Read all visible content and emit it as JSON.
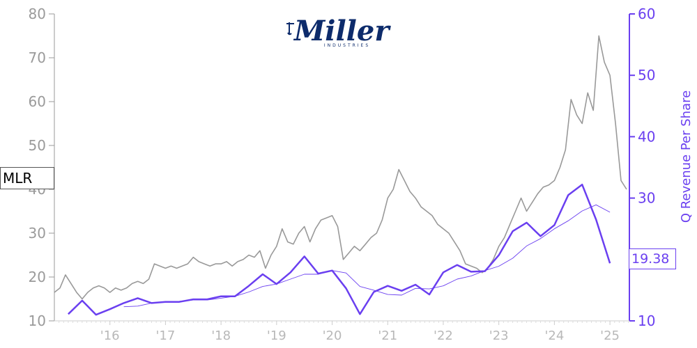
{
  "ticker": "MLR",
  "last_value_label": "19.38",
  "logo": {
    "wordmark": "Miller",
    "subtitle": "INDUSTRIES",
    "color": "#0d2b6b"
  },
  "colors": {
    "price": "#999999",
    "revenue": "#6a3ff0",
    "trend": "#6a3ff0",
    "left_axis": "#9a9a9a",
    "x_axis_text": "#b8b8b8"
  },
  "chart_data": {
    "type": "line",
    "title": "",
    "xlabel": "",
    "ylabel": "",
    "y2label": "Q Revenue Per Share",
    "x_ticks": [
      "'16",
      "'17",
      "'18",
      "'19",
      "'20",
      "'21",
      "'22",
      "'23",
      "'24",
      "'25"
    ],
    "xlim": [
      2015.0,
      2025.35
    ],
    "ylim": [
      10,
      80
    ],
    "y_ticks": [
      10,
      20,
      30,
      40,
      50,
      60,
      70,
      80
    ],
    "y2lim": [
      10,
      60
    ],
    "y2_ticks": [
      10,
      20,
      30,
      40,
      50,
      60
    ],
    "grid": false,
    "series": [
      {
        "name": "MLR",
        "axis": "left",
        "x": [
          2015.0,
          2015.1,
          2015.2,
          2015.3,
          2015.4,
          2015.5,
          2015.6,
          2015.7,
          2015.8,
          2015.9,
          2016.0,
          2016.1,
          2016.2,
          2016.3,
          2016.4,
          2016.5,
          2016.6,
          2016.7,
          2016.8,
          2016.9,
          2017.0,
          2017.1,
          2017.2,
          2017.3,
          2017.4,
          2017.5,
          2017.6,
          2017.7,
          2017.8,
          2017.9,
          2018.0,
          2018.1,
          2018.2,
          2018.3,
          2018.4,
          2018.5,
          2018.6,
          2018.7,
          2018.8,
          2018.9,
          2019.0,
          2019.1,
          2019.2,
          2019.3,
          2019.4,
          2019.5,
          2019.6,
          2019.7,
          2019.8,
          2019.9,
          2020.0,
          2020.1,
          2020.2,
          2020.3,
          2020.4,
          2020.5,
          2020.6,
          2020.7,
          2020.8,
          2020.9,
          2021.0,
          2021.1,
          2021.2,
          2021.3,
          2021.4,
          2021.5,
          2021.6,
          2021.7,
          2021.8,
          2021.9,
          2022.0,
          2022.1,
          2022.2,
          2022.3,
          2022.4,
          2022.5,
          2022.6,
          2022.7,
          2022.8,
          2022.9,
          2023.0,
          2023.1,
          2023.2,
          2023.3,
          2023.4,
          2023.5,
          2023.6,
          2023.7,
          2023.8,
          2023.9,
          2024.0,
          2024.1,
          2024.2,
          2024.3,
          2024.4,
          2024.5,
          2024.6,
          2024.7,
          2024.8,
          2024.9,
          2025.0,
          2025.1,
          2025.2,
          2025.3
        ],
        "y": [
          16.5,
          17.5,
          20.5,
          18.5,
          16.5,
          15.0,
          16.5,
          17.5,
          18.0,
          17.5,
          16.5,
          17.5,
          17.0,
          17.5,
          18.5,
          19.0,
          18.5,
          19.5,
          23.0,
          22.5,
          22.0,
          22.5,
          22.0,
          22.5,
          23.0,
          24.5,
          23.5,
          23.0,
          22.5,
          23.0,
          23.0,
          23.5,
          22.5,
          23.5,
          24.0,
          25.0,
          24.5,
          26.0,
          22.0,
          25.0,
          27.0,
          31.0,
          28.0,
          27.5,
          30.0,
          31.5,
          28.0,
          31.0,
          33.0,
          33.5,
          34.0,
          31.5,
          24.0,
          25.5,
          27.0,
          26.0,
          27.5,
          29.0,
          30.0,
          33.0,
          38.0,
          40.0,
          44.5,
          42.0,
          39.5,
          38.0,
          36.0,
          35.0,
          34.0,
          32.0,
          31.0,
          30.0,
          28.0,
          26.0,
          23.0,
          22.5,
          22.0,
          21.0,
          22.0,
          24.0,
          27.0,
          29.0,
          32.0,
          35.0,
          38.0,
          35.0,
          37.0,
          39.0,
          40.5,
          41.0,
          42.0,
          45.0,
          49.0,
          60.5,
          57.0,
          55.0,
          62.0,
          58.0,
          75.0,
          69.0,
          66.0,
          55.0,
          42.0,
          40.0
        ]
      },
      {
        "name": "Q Revenue Per Share",
        "axis": "right",
        "x": [
          2015.25,
          2015.5,
          2015.75,
          2016.0,
          2016.25,
          2016.5,
          2016.75,
          2017.0,
          2017.25,
          2017.5,
          2017.75,
          2018.0,
          2018.25,
          2018.5,
          2018.75,
          2019.0,
          2019.25,
          2019.5,
          2019.75,
          2020.0,
          2020.25,
          2020.5,
          2020.75,
          2021.0,
          2021.25,
          2021.5,
          2021.75,
          2022.0,
          2022.25,
          2022.5,
          2022.75,
          2023.0,
          2023.25,
          2023.5,
          2023.75,
          2024.0,
          2024.25,
          2024.5,
          2024.75,
          2025.0
        ],
        "y": [
          11.1,
          13.3,
          11.0,
          11.9,
          12.9,
          13.7,
          12.9,
          13.1,
          13.1,
          13.5,
          13.5,
          14.0,
          14.0,
          15.7,
          17.6,
          16.0,
          17.9,
          20.5,
          17.7,
          18.2,
          15.3,
          11.1,
          14.7,
          15.7,
          14.9,
          15.9,
          14.3,
          17.9,
          19.1,
          18.0,
          18.1,
          20.7,
          24.6,
          26.0,
          23.8,
          25.6,
          30.5,
          32.2,
          26.5,
          19.38
        ]
      },
      {
        "axis": "right",
        "x": [
          2016.25,
          2016.5,
          2016.75,
          2017.0,
          2017.25,
          2017.5,
          2017.75,
          2018.0,
          2018.25,
          2018.5,
          2018.75,
          2019.0,
          2019.25,
          2019.5,
          2019.75,
          2020.0,
          2020.25,
          2020.5,
          2020.75,
          2021.0,
          2021.25,
          2021.5,
          2021.75,
          2022.0,
          2022.25,
          2022.5,
          2022.75,
          2023.0,
          2023.25,
          2023.5,
          2023.75,
          2024.0,
          2024.25,
          2024.5,
          2024.75,
          2025.0
        ],
        "y": [
          12.3,
          12.4,
          12.9,
          13.1,
          13.2,
          13.4,
          13.4,
          13.7,
          14.0,
          14.7,
          15.6,
          16.0,
          16.8,
          17.6,
          17.6,
          18.2,
          17.8,
          15.6,
          15.0,
          14.3,
          14.2,
          15.3,
          15.2,
          15.7,
          16.8,
          17.3,
          18.2,
          18.9,
          20.2,
          22.2,
          23.4,
          25.0,
          26.3,
          27.9,
          28.9,
          27.7
        ]
      }
    ]
  }
}
